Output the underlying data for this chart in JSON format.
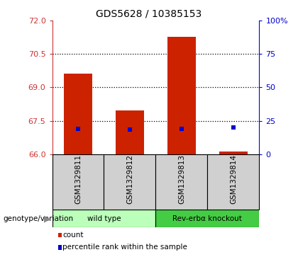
{
  "title": "GDS5628 / 10385153",
  "samples": [
    "GSM1329811",
    "GSM1329812",
    "GSM1329813",
    "GSM1329814"
  ],
  "bar_bottoms": [
    66,
    66,
    66,
    66
  ],
  "bar_tops": [
    69.62,
    67.95,
    71.28,
    66.12
  ],
  "percentile_values": [
    67.15,
    67.12,
    67.15,
    67.2
  ],
  "bar_color": "#cc2200",
  "percentile_color": "#0000cc",
  "left_ylim": [
    66,
    72
  ],
  "right_ylim": [
    0,
    100
  ],
  "left_yticks": [
    66,
    67.5,
    69,
    70.5,
    72
  ],
  "right_yticks": [
    0,
    25,
    50,
    75,
    100
  ],
  "right_yticklabels": [
    "0",
    "25",
    "50",
    "75",
    "100%"
  ],
  "left_ytick_color": "#cc3333",
  "right_ytick_color": "#0000cc",
  "groups": [
    {
      "label": "wild type",
      "indices": [
        0,
        1
      ],
      "color": "#bbffbb"
    },
    {
      "label": "Rev-erbα knockout",
      "indices": [
        2,
        3
      ],
      "color": "#44cc44"
    }
  ],
  "genotype_label": "genotype/variation",
  "legend_items": [
    {
      "color": "#cc2200",
      "label": "count"
    },
    {
      "color": "#0000cc",
      "label": "percentile rank within the sample"
    }
  ],
  "sample_bg_color": "#d0d0d0",
  "plot_bg": "#ffffff",
  "bar_width": 0.55
}
